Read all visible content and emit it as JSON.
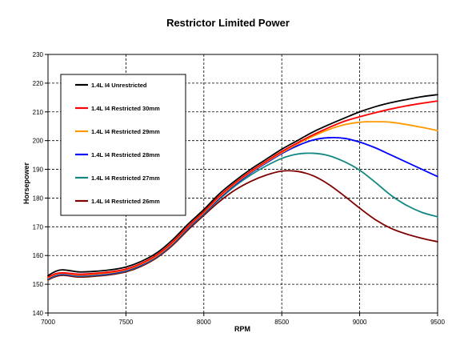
{
  "chart_data": {
    "type": "line",
    "title": "Restrictor Limited Power",
    "xlabel": "RPM",
    "ylabel": "Horsepower",
    "xlim": [
      7000,
      9500
    ],
    "ylim": [
      140,
      230
    ],
    "xticks": [
      "7000",
      "7500",
      "8000",
      "8500",
      "9000",
      "9500"
    ],
    "yticks": [
      "140",
      "150",
      "160",
      "170",
      "180",
      "190",
      "200",
      "210",
      "220",
      "230"
    ],
    "grid": true,
    "legend_position": "top-left",
    "series": [
      {
        "name": "1.4L I4 Unrestricted",
        "color": "#000000",
        "points": [
          [
            7000,
            153
          ],
          [
            7050,
            154.5
          ],
          [
            7100,
            155
          ],
          [
            7200,
            154.3
          ],
          [
            7300,
            154.5
          ],
          [
            7400,
            155
          ],
          [
            7500,
            156
          ],
          [
            7600,
            158
          ],
          [
            7700,
            161
          ],
          [
            7800,
            165.5
          ],
          [
            7900,
            171
          ],
          [
            8000,
            176
          ],
          [
            8100,
            181.5
          ],
          [
            8200,
            186
          ],
          [
            8300,
            190
          ],
          [
            8400,
            193.5
          ],
          [
            8500,
            197
          ],
          [
            8600,
            200
          ],
          [
            8700,
            203
          ],
          [
            8800,
            205.5
          ],
          [
            8900,
            207.8
          ],
          [
            9000,
            210
          ],
          [
            9100,
            211.8
          ],
          [
            9200,
            213.2
          ],
          [
            9300,
            214.3
          ],
          [
            9400,
            215.3
          ],
          [
            9500,
            216
          ]
        ]
      },
      {
        "name": "1.4L I4 Restricted 30mm",
        "color": "#ff0000",
        "points": [
          [
            7000,
            152.5
          ],
          [
            7050,
            153.7
          ],
          [
            7100,
            154
          ],
          [
            7200,
            153.5
          ],
          [
            7300,
            153.8
          ],
          [
            7400,
            154.3
          ],
          [
            7500,
            155.3
          ],
          [
            7600,
            157.3
          ],
          [
            7700,
            160.3
          ],
          [
            7800,
            164.7
          ],
          [
            7900,
            170.2
          ],
          [
            8000,
            175.3
          ],
          [
            8100,
            180.7
          ],
          [
            8200,
            185.3
          ],
          [
            8300,
            189.3
          ],
          [
            8400,
            192.8
          ],
          [
            8500,
            196.2
          ],
          [
            8600,
            199.2
          ],
          [
            8700,
            202
          ],
          [
            8800,
            204.5
          ],
          [
            8900,
            206.7
          ],
          [
            9000,
            208.3
          ],
          [
            9100,
            209.7
          ],
          [
            9200,
            211
          ],
          [
            9300,
            212.1
          ],
          [
            9400,
            213
          ],
          [
            9500,
            213.8
          ]
        ]
      },
      {
        "name": "1.4L I4 Restricted 29mm",
        "color": "#ff9900",
        "points": [
          [
            7000,
            152.2
          ],
          [
            7050,
            153.4
          ],
          [
            7100,
            153.8
          ],
          [
            7200,
            153.2
          ],
          [
            7300,
            153.5
          ],
          [
            7400,
            154
          ],
          [
            7500,
            155
          ],
          [
            7600,
            157
          ],
          [
            7700,
            160
          ],
          [
            7800,
            164.4
          ],
          [
            7900,
            170
          ],
          [
            8000,
            175
          ],
          [
            8100,
            180.3
          ],
          [
            8200,
            185
          ],
          [
            8300,
            189
          ],
          [
            8400,
            192.5
          ],
          [
            8500,
            195.8
          ],
          [
            8600,
            198.8
          ],
          [
            8700,
            201.5
          ],
          [
            8800,
            203.8
          ],
          [
            8900,
            205.5
          ],
          [
            9000,
            206.4
          ],
          [
            9100,
            206.6
          ],
          [
            9200,
            206.4
          ],
          [
            9300,
            205.6
          ],
          [
            9400,
            204.6
          ],
          [
            9500,
            203.5
          ]
        ]
      },
      {
        "name": "1.4L I4 Restricted 28mm",
        "color": "#0000ff",
        "points": [
          [
            7000,
            152
          ],
          [
            7050,
            153.2
          ],
          [
            7100,
            153.6
          ],
          [
            7200,
            153
          ],
          [
            7300,
            153.3
          ],
          [
            7400,
            153.8
          ],
          [
            7500,
            154.8
          ],
          [
            7600,
            156.8
          ],
          [
            7700,
            159.8
          ],
          [
            7800,
            164.2
          ],
          [
            7900,
            169.8
          ],
          [
            8000,
            174.8
          ],
          [
            8100,
            180
          ],
          [
            8200,
            184.7
          ],
          [
            8300,
            188.7
          ],
          [
            8400,
            192.2
          ],
          [
            8500,
            195.5
          ],
          [
            8600,
            198.2
          ],
          [
            8700,
            200.2
          ],
          [
            8800,
            201
          ],
          [
            8900,
            200.8
          ],
          [
            9000,
            199.5
          ],
          [
            9100,
            197.5
          ],
          [
            9200,
            195
          ],
          [
            9300,
            192.5
          ],
          [
            9400,
            190
          ],
          [
            9500,
            187.5
          ]
        ]
      },
      {
        "name": "1.4L I4 Restricted 27mm",
        "color": "#138882",
        "points": [
          [
            7000,
            151.8
          ],
          [
            7050,
            153
          ],
          [
            7100,
            153.4
          ],
          [
            7200,
            152.8
          ],
          [
            7300,
            153.1
          ],
          [
            7400,
            153.6
          ],
          [
            7500,
            154.6
          ],
          [
            7600,
            156.6
          ],
          [
            7700,
            159.6
          ],
          [
            7800,
            164
          ],
          [
            7900,
            169.5
          ],
          [
            8000,
            174.5
          ],
          [
            8100,
            179.6
          ],
          [
            8200,
            184.2
          ],
          [
            8300,
            188
          ],
          [
            8400,
            191.2
          ],
          [
            8500,
            193.8
          ],
          [
            8600,
            195.3
          ],
          [
            8700,
            195.6
          ],
          [
            8800,
            194.8
          ],
          [
            8900,
            192.7
          ],
          [
            9000,
            189.7
          ],
          [
            9100,
            185.5
          ],
          [
            9200,
            181
          ],
          [
            9300,
            177.5
          ],
          [
            9400,
            175
          ],
          [
            9500,
            173.5
          ]
        ]
      },
      {
        "name": "1.4L I4 Restricted 26mm",
        "color": "#7f0000",
        "points": [
          [
            7000,
            151.5
          ],
          [
            7050,
            152.7
          ],
          [
            7100,
            153.1
          ],
          [
            7200,
            152.5
          ],
          [
            7300,
            152.8
          ],
          [
            7400,
            153.3
          ],
          [
            7500,
            154.3
          ],
          [
            7600,
            156.3
          ],
          [
            7700,
            159.3
          ],
          [
            7800,
            163.6
          ],
          [
            7900,
            169
          ],
          [
            8000,
            174
          ],
          [
            8100,
            178.8
          ],
          [
            8200,
            182.8
          ],
          [
            8300,
            185.8
          ],
          [
            8400,
            188
          ],
          [
            8500,
            189.4
          ],
          [
            8600,
            189.3
          ],
          [
            8700,
            187.8
          ],
          [
            8800,
            184.8
          ],
          [
            8900,
            180.8
          ],
          [
            9000,
            176.5
          ],
          [
            9100,
            172.5
          ],
          [
            9200,
            169.5
          ],
          [
            9300,
            167.5
          ],
          [
            9400,
            166
          ],
          [
            9500,
            164.8
          ]
        ]
      }
    ]
  }
}
